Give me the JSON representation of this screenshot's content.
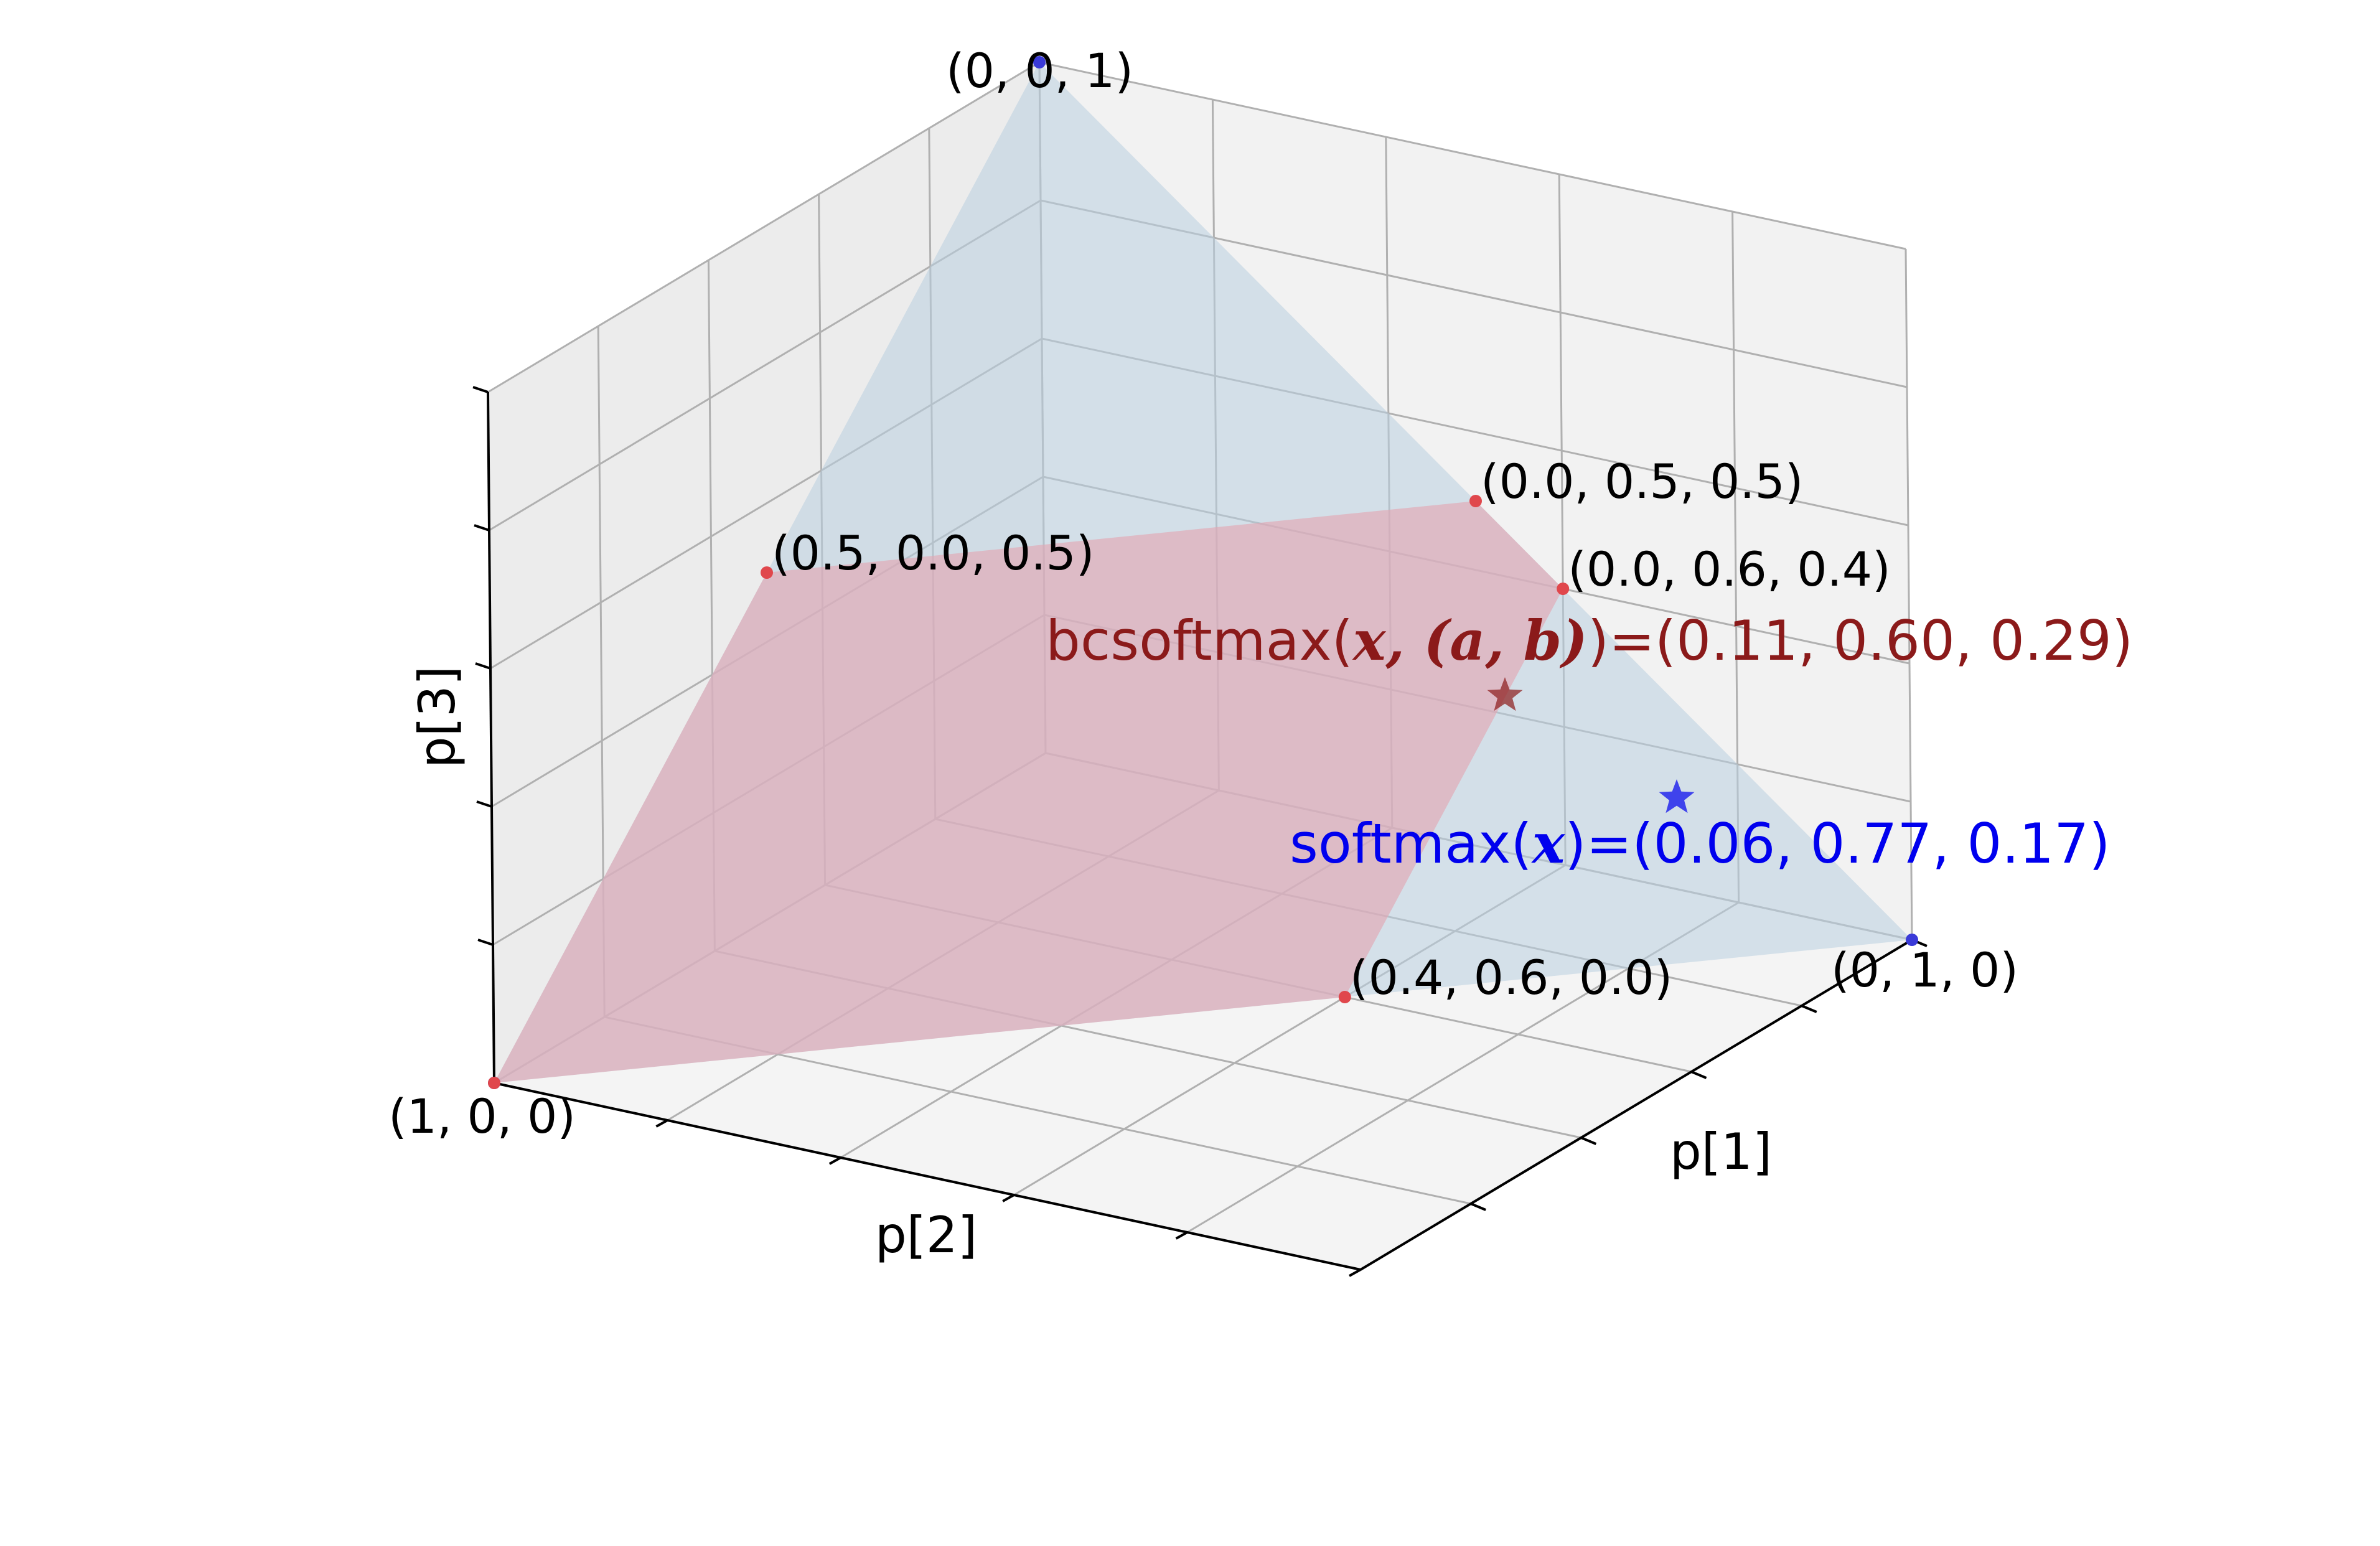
{
  "chart_data": {
    "type": "3d-scatter-surface",
    "axes": {
      "x": {
        "label": "p[1]",
        "range": [
          0,
          1
        ]
      },
      "y": {
        "label": "p[2]",
        "range": [
          0,
          1
        ]
      },
      "z": {
        "label": "p[3]",
        "range": [
          0,
          1
        ]
      }
    },
    "grid": true,
    "simplex": {
      "vertices": [
        {
          "p": [
            1,
            0,
            0
          ],
          "label": "(1, 0, 0)"
        },
        {
          "p": [
            0,
            1,
            0
          ],
          "label": "(0, 1, 0)"
        },
        {
          "p": [
            0,
            0,
            1
          ],
          "label": "(0, 0, 1)"
        }
      ],
      "face_color": "#b9cfe0",
      "vertex_color": "#3a3ad8"
    },
    "feasible_region": {
      "vertices": [
        {
          "p": [
            1,
            0,
            0
          ],
          "label": ""
        },
        {
          "p": [
            0.4,
            0.6,
            0.0
          ],
          "label": "(0.4, 0.6, 0.0)"
        },
        {
          "p": [
            0.0,
            0.6,
            0.4
          ],
          "label": "(0.0, 0.6, 0.4)"
        },
        {
          "p": [
            0.0,
            0.5,
            0.5
          ],
          "label": "(0.0, 0.5, 0.5)"
        },
        {
          "p": [
            0.5,
            0.0,
            0.5
          ],
          "label": "(0.5, 0.0, 0.5)"
        }
      ],
      "face_color": "#e2a7b4",
      "vertex_color": "#e0474c"
    },
    "points": [
      {
        "name": "bcsoftmax",
        "p": [
          0.11,
          0.6,
          0.29
        ],
        "marker": "star",
        "color": "#8b1a1a",
        "label_prefix": "bcsoftmax(",
        "label_math": "x, (a, b)",
        "label_suffix": ")=(0.11, 0.60, 0.29)"
      },
      {
        "name": "softmax",
        "p": [
          0.06,
          0.77,
          0.17
        ],
        "marker": "star",
        "color": "#0000ee",
        "label_prefix": "softmax(",
        "label_math": "x",
        "label_suffix": ")=(0.06, 0.77, 0.17)"
      }
    ]
  }
}
